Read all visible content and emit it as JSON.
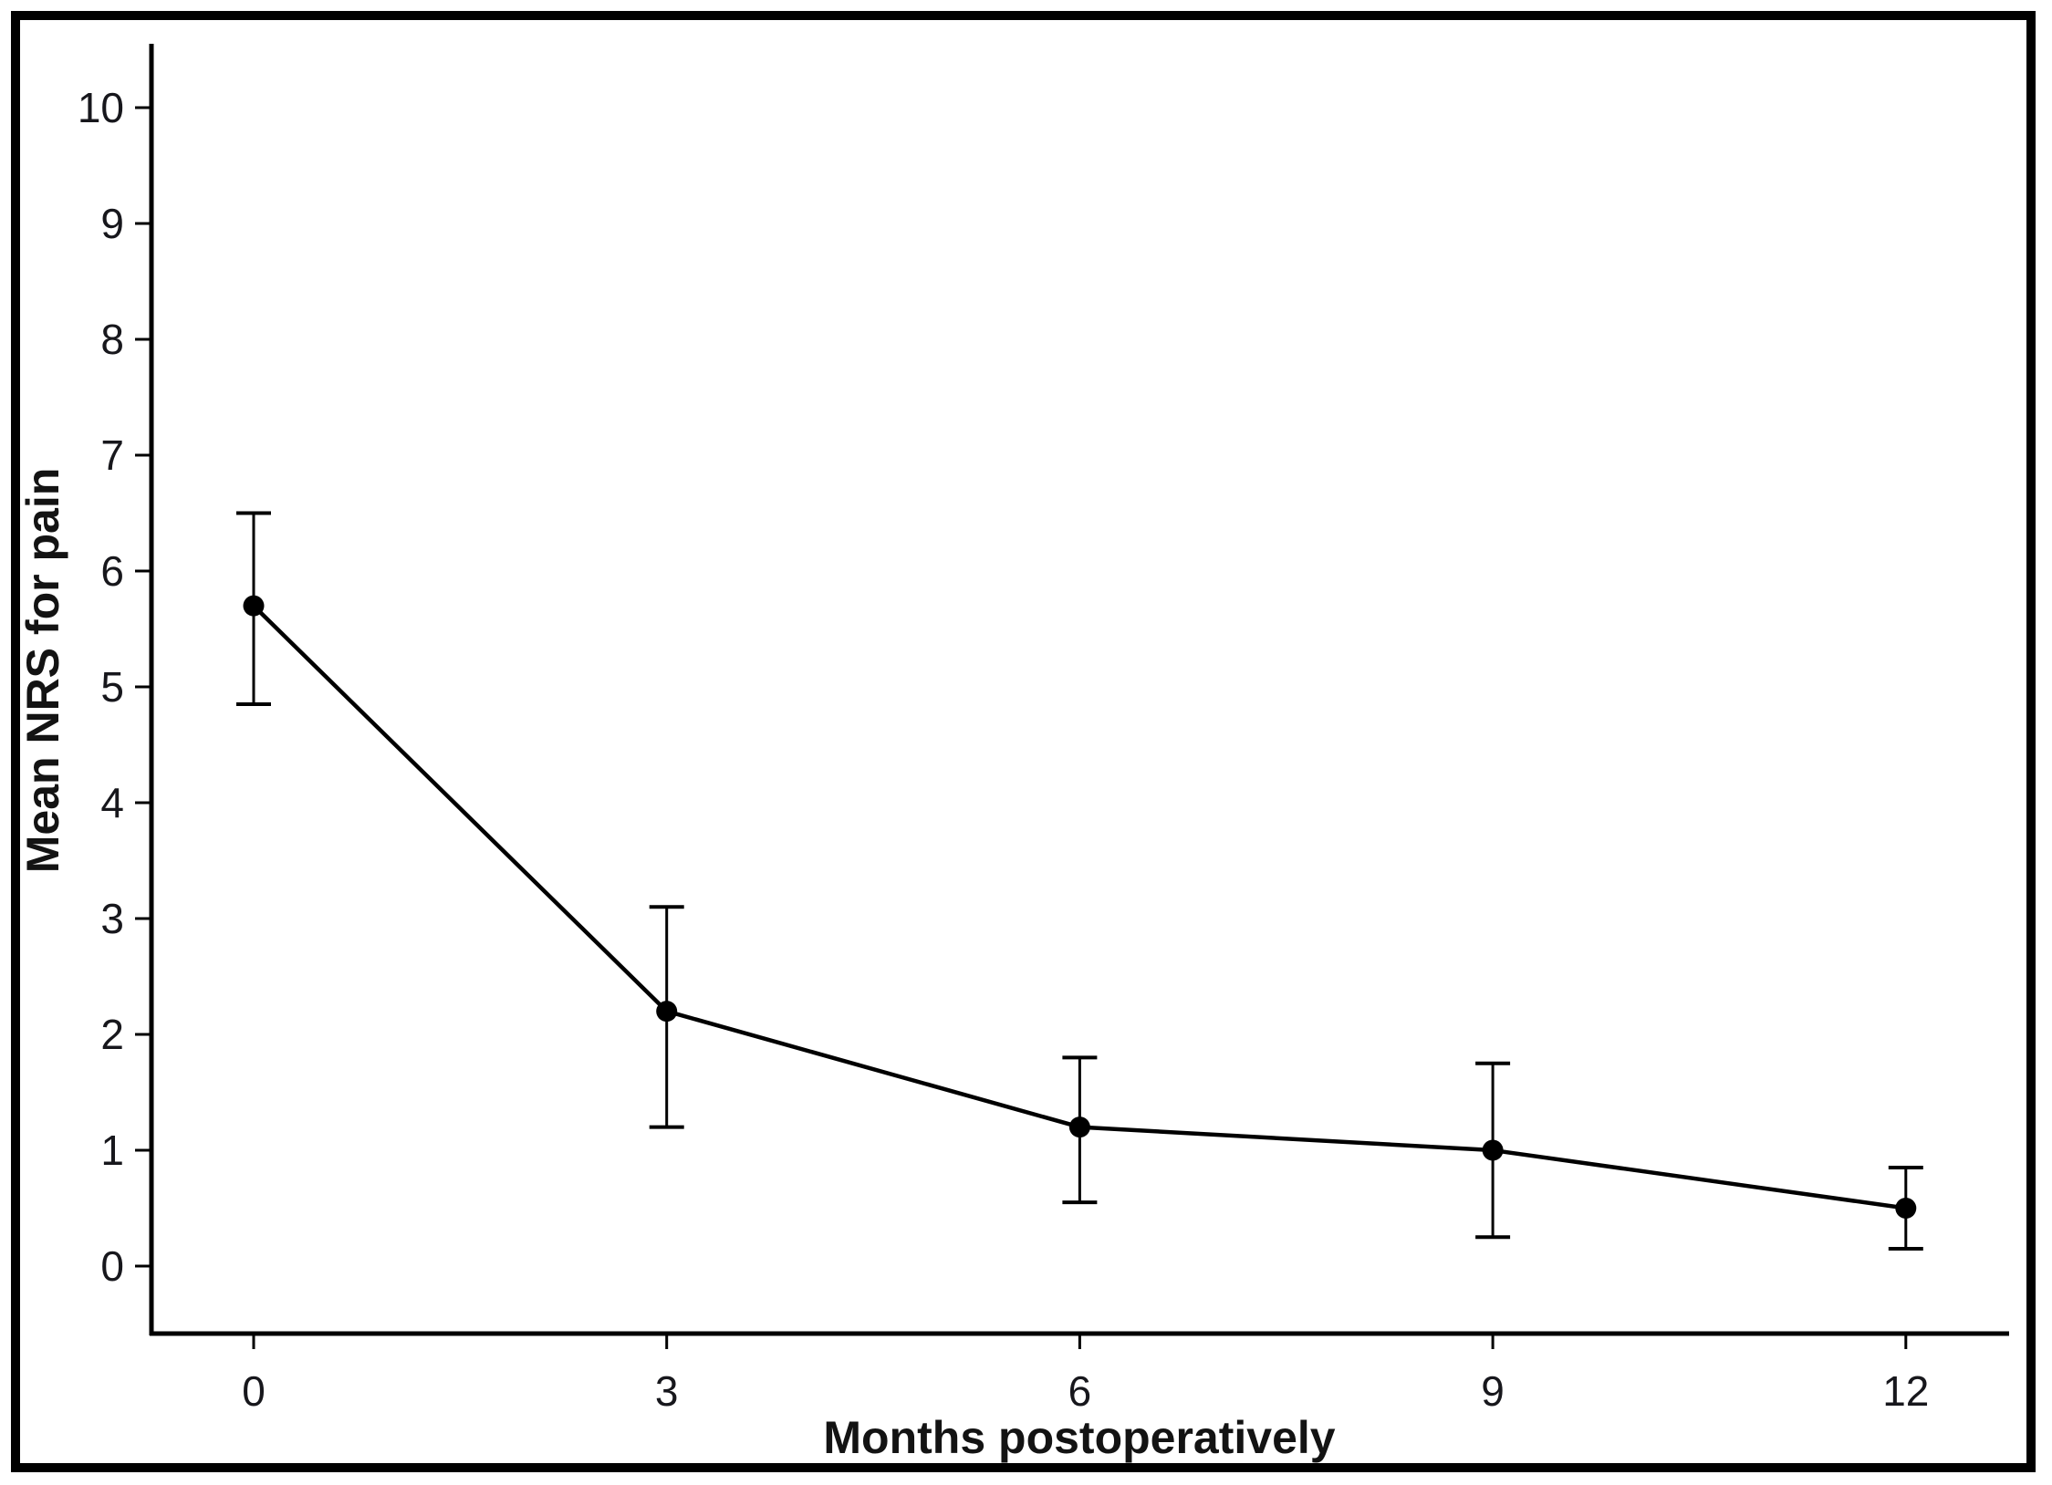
{
  "figure": {
    "background_color": "#ffffff",
    "frame_color": "#000000",
    "plot_color": "#000000"
  },
  "chart_data": {
    "type": "line",
    "title": "",
    "xlabel": "Months postoperatively",
    "ylabel": "Mean NRS for pain",
    "x": [
      0,
      3,
      6,
      9,
      12
    ],
    "series": [
      {
        "name": "Mean NRS for pain",
        "values": [
          5.7,
          2.2,
          1.2,
          1.0,
          0.5
        ],
        "error_upper": [
          6.5,
          3.1,
          1.8,
          1.75,
          0.85
        ],
        "error_lower": [
          4.85,
          1.2,
          0.55,
          0.25,
          0.15
        ]
      }
    ],
    "xticks": [
      0,
      3,
      6,
      9,
      12
    ],
    "yticks": [
      0,
      1,
      2,
      3,
      4,
      5,
      6,
      7,
      8,
      9,
      10
    ],
    "xlim": [
      0,
      12
    ],
    "ylim": [
      0,
      10
    ],
    "grid": false,
    "legend": false,
    "marker": "filled-circle",
    "error_bars": true,
    "line_color": "#000000",
    "marker_color": "#000000"
  }
}
